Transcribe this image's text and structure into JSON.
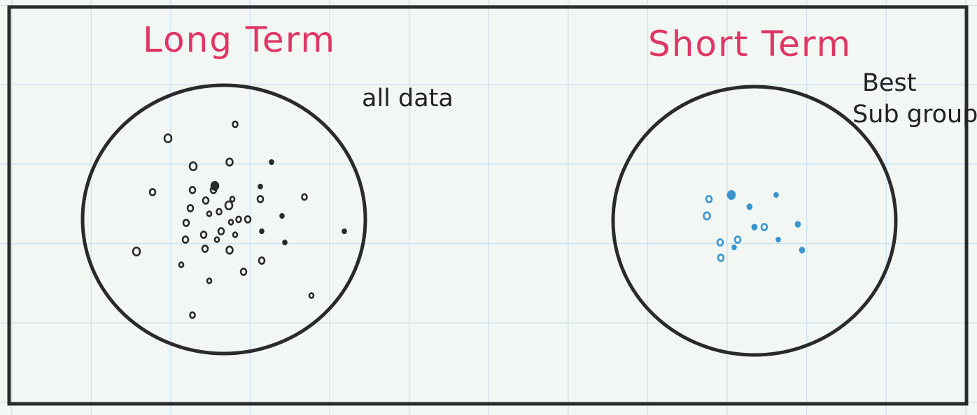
{
  "colors": {
    "ink": "#2a2a2a",
    "title": "#e03565",
    "highlight": "#3a95cf"
  },
  "panels": [
    {
      "title": "Long Term",
      "note_lines": [
        "all data"
      ],
      "point_color": "#2a2a2a"
    },
    {
      "title": "Short Term",
      "note_lines": [
        "Best",
        "Sub group"
      ],
      "point_color": "#3a95cf"
    }
  ]
}
